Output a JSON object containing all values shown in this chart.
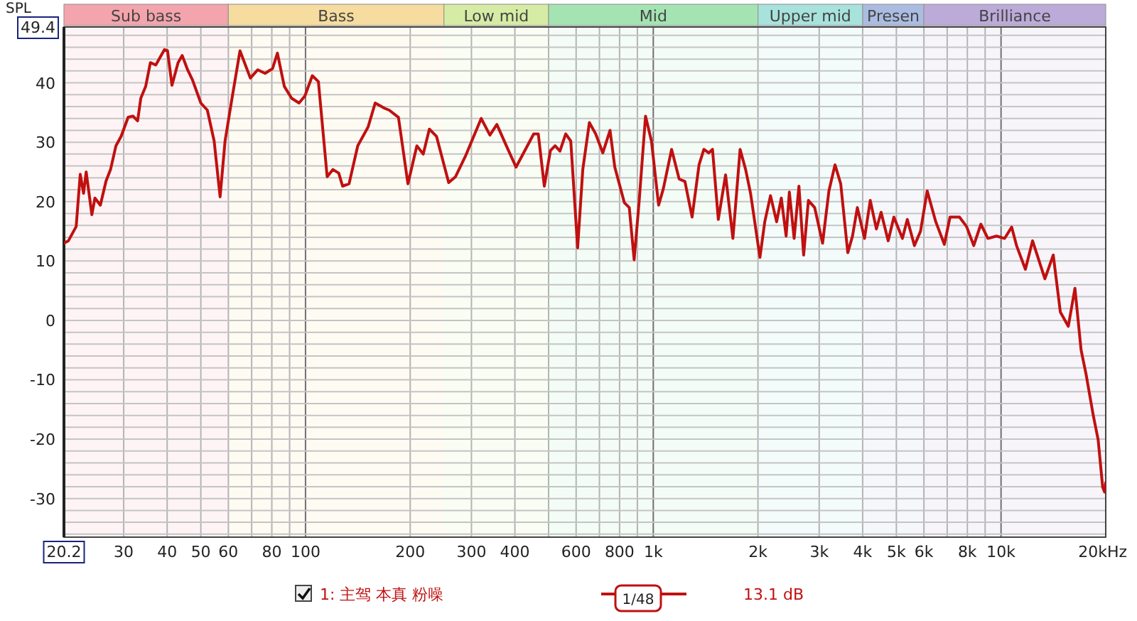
{
  "chart_data": {
    "type": "line",
    "ylabel": "SPL",
    "x": [
      20.2,
      20.8,
      21.9,
      22.5,
      23.0,
      23.4,
      24.3,
      24.8,
      25.7,
      26.7,
      27.5,
      28.5,
      29.5,
      30.9,
      31.9,
      32.9,
      33.6,
      34.7,
      35.8,
      37.1,
      39.3,
      40.1,
      41.3,
      43.0,
      44.2,
      45.8,
      47.3,
      50.0,
      52.2,
      54.6,
      56.8,
      58.7,
      61.3,
      64.8,
      69.4,
      72.9,
      76.5,
      80.4,
      83.0,
      86.9,
      91.2,
      95.8,
      99.6,
      104.6,
      108.9,
      115.4,
      119.9,
      124.6,
      127.8,
      133.4,
      141.3,
      151.4,
      158.6,
      169,
      174,
      185,
      197,
      209,
      218,
      227,
      238,
      258,
      270,
      289,
      320,
      339,
      355,
      378,
      403,
      453,
      467,
      486,
      506,
      522,
      539,
      560,
      579,
      606,
      627,
      655,
      683,
      716,
      751,
      775,
      826,
      853,
      881,
      910,
      950,
      988,
      1036,
      1069,
      1129,
      1187,
      1233,
      1293,
      1354,
      1398,
      1443,
      1480,
      1538,
      1614,
      1694,
      1777,
      1843,
      1904,
      2026,
      2092,
      2173,
      2263,
      2334,
      2410,
      2462,
      2541,
      2623,
      2706,
      2793,
      2911,
      3068,
      3199,
      3331,
      3459,
      3625,
      3740,
      3862,
      4050,
      4207,
      4380,
      4519,
      4737,
      4918,
      5205,
      5376,
      5634,
      5867,
      6133,
      6491,
      6871,
      7133,
      7592,
      7960,
      8345,
      8748,
      9168,
      9703,
      10240,
      10730,
      11080,
      11750,
      12320,
      13370,
      14130,
      14810,
      15610,
      16310,
      16990,
      17550,
      18430,
      19020,
      19600,
      19850,
      20000
    ],
    "series": [
      {
        "name": "1: 主驾 本真 粉噪",
        "color": "#c01010",
        "values": [
          13.0,
          13.4,
          15.8,
          24.6,
          21.4,
          25.0,
          17.8,
          20.6,
          19.4,
          23.5,
          25.4,
          29.4,
          31.0,
          34.2,
          34.4,
          33.6,
          37.4,
          39.4,
          43.4,
          43.0,
          45.6,
          45.4,
          39.6,
          43.4,
          44.6,
          42.2,
          40.5,
          36.6,
          35.4,
          30.2,
          20.8,
          30.2,
          37.0,
          45.4,
          40.8,
          42.2,
          41.6,
          42.4,
          45.0,
          39.4,
          37.4,
          36.6,
          37.8,
          41.2,
          40.2,
          24.2,
          25.4,
          24.8,
          22.6,
          23.0,
          29.4,
          32.6,
          36.6,
          35.7,
          35.4,
          34.2,
          23.0,
          29.4,
          28.0,
          32.2,
          31.0,
          23.2,
          24.2,
          27.8,
          34.0,
          31.2,
          33.0,
          29.4,
          25.8,
          31.4,
          31.4,
          22.6,
          28.6,
          29.4,
          28.5,
          31.4,
          30.2,
          12.2,
          25.4,
          33.3,
          31.4,
          28.2,
          32.0,
          25.8,
          19.8,
          19.0,
          10.2,
          19.8,
          34.4,
          30.2,
          19.4,
          22.2,
          28.8,
          23.8,
          23.4,
          17.4,
          26.2,
          28.8,
          28.2,
          28.8,
          17.0,
          24.5,
          13.8,
          28.8,
          25.4,
          21.4,
          10.6,
          16.6,
          21.0,
          16.6,
          20.6,
          14.2,
          21.6,
          13.8,
          22.6,
          11.0,
          20.2,
          19.0,
          13.0,
          21.8,
          26.2,
          23.0,
          11.4,
          14.2,
          19.0,
          13.8,
          20.2,
          15.4,
          18.2,
          13.4,
          17.4,
          13.8,
          17.0,
          12.6,
          15.0,
          21.8,
          16.6,
          12.8,
          17.4,
          17.4,
          15.8,
          12.6,
          16.2,
          13.8,
          14.2,
          13.8,
          15.7,
          12.6,
          8.6,
          13.4,
          7.0,
          11.0,
          1.4,
          -1.0,
          5.4,
          -5.0,
          -9.0,
          -16.1,
          -20.1,
          -28.1,
          -28.9,
          -27.3
        ]
      }
    ],
    "log": "x",
    "xlim": [
      20.2,
      20000
    ],
    "xticks": [
      20.2,
      30,
      40,
      50,
      60,
      {
        "value": 70,
        "label": null
      },
      80,
      {
        "value": 90,
        "label": null
      },
      100,
      200,
      300,
      400,
      {
        "value": 500,
        "label": null
      },
      600,
      {
        "value": 700,
        "label": null
      },
      800,
      {
        "value": 900,
        "label": null
      },
      {
        "value": 1000,
        "label": "1k"
      },
      {
        "value": 2000,
        "label": "2k"
      },
      {
        "value": 3000,
        "label": "3k"
      },
      {
        "value": 4000,
        "label": "4k"
      },
      {
        "value": 5000,
        "label": "5k"
      },
      {
        "value": 6000,
        "label": "6k"
      },
      {
        "value": 7000,
        "label": null
      },
      {
        "value": 8000,
        "label": "8k"
      },
      {
        "value": 9000,
        "label": null
      },
      {
        "value": 10000,
        "label": "10k"
      },
      {
        "value": 20000,
        "label": "20k"
      }
    ],
    "xlabel": "Hz",
    "ylim": [
      -36.5,
      49.4
    ],
    "yticks": [
      {
        "value": -36,
        "label": null
      },
      {
        "value": -34,
        "label": null
      },
      {
        "value": -32,
        "label": null
      },
      -30,
      {
        "value": -28,
        "label": null
      },
      {
        "value": -26,
        "label": null
      },
      {
        "value": -24,
        "label": null
      },
      {
        "value": -22,
        "label": null
      },
      -20,
      {
        "value": -18,
        "label": null
      },
      {
        "value": -16,
        "label": null
      },
      {
        "value": -14,
        "label": null
      },
      {
        "value": -12,
        "label": null
      },
      -10,
      {
        "value": -8,
        "label": null
      },
      {
        "value": -6,
        "label": null
      },
      {
        "value": -4,
        "label": null
      },
      {
        "value": -2,
        "label": null
      },
      0,
      {
        "value": 2,
        "label": null
      },
      {
        "value": 4,
        "label": null
      },
      {
        "value": 6,
        "label": null
      },
      {
        "value": 8,
        "label": null
      },
      10,
      {
        "value": 12,
        "label": null
      },
      {
        "value": 14,
        "label": null
      },
      {
        "value": 16,
        "label": null
      },
      {
        "value": 18,
        "label": null
      },
      20,
      {
        "value": 22,
        "label": null
      },
      {
        "value": 24,
        "label": null
      },
      {
        "value": 26,
        "label": null
      },
      {
        "value": 28,
        "label": null
      },
      30,
      {
        "value": 32,
        "label": null
      },
      {
        "value": 34,
        "label": null
      },
      {
        "value": 36,
        "label": null
      },
      {
        "value": 38,
        "label": null
      },
      40,
      {
        "value": 42,
        "label": null
      },
      {
        "value": 44,
        "label": null
      },
      {
        "value": 46,
        "label": null
      },
      {
        "value": 48,
        "label": null
      },
      49.4
    ],
    "bands": [
      {
        "axis": "x",
        "from": 20.2,
        "to": 60,
        "label": "Sub bass",
        "color": "#f4a4ac"
      },
      {
        "axis": "x",
        "from": 60,
        "to": 250,
        "label": "Bass",
        "color": "#f6dc9e"
      },
      {
        "axis": "x",
        "from": 250,
        "to": 500,
        "label": "Low mid",
        "color": "#d6eca4"
      },
      {
        "axis": "x",
        "from": 500,
        "to": 2000,
        "label": "Mid",
        "color": "#a4e4b2"
      },
      {
        "axis": "x",
        "from": 2000,
        "to": 4000,
        "label": "Upper mid",
        "color": "#a8e2dc"
      },
      {
        "axis": "x",
        "from": 4000,
        "to": 6000,
        "label": "Presen",
        "color": "#aabce2"
      },
      {
        "axis": "x",
        "from": 6000,
        "to": 20000,
        "label": "Brilliance",
        "color": "#bcaad8"
      }
    ],
    "annotations": [
      "1/48",
      "13.1 dB"
    ],
    "grid": true,
    "legend": "bottom",
    "line_style": "solid",
    "marker": "none"
  }
}
